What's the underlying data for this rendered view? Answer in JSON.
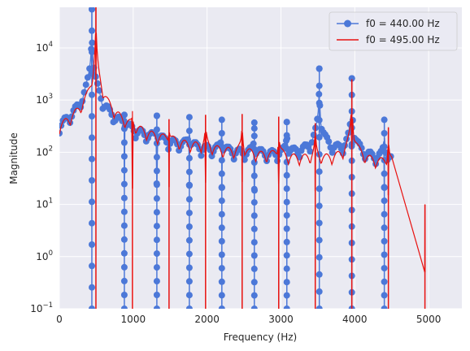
{
  "chart_data": {
    "type": "line",
    "title": "",
    "xlabel": "Frequency (Hz)",
    "ylabel": "Magnitude",
    "xlim": [
      0,
      5450
    ],
    "ylim": [
      0.1,
      60000
    ],
    "yscale": "log",
    "grid": true,
    "legend_position": "top-right",
    "x_ticks": [
      {
        "value": 0,
        "label": "0"
      },
      {
        "value": 1000,
        "label": "1000"
      },
      {
        "value": 2000,
        "label": "2000"
      },
      {
        "value": 3000,
        "label": "3000"
      },
      {
        "value": 4000,
        "label": "4000"
      },
      {
        "value": 5000,
        "label": "5000"
      }
    ],
    "y_ticks": [
      {
        "value": 0.1,
        "base": "10",
        "exp": "−1"
      },
      {
        "value": 1,
        "base": "10",
        "exp": "0"
      },
      {
        "value": 10,
        "base": "10",
        "exp": "1"
      },
      {
        "value": 100,
        "base": "10",
        "exp": "2"
      },
      {
        "value": 1000,
        "base": "10",
        "exp": "3"
      },
      {
        "value": 10000,
        "base": "10",
        "exp": "4"
      }
    ],
    "series": [
      {
        "name": "f0 = 440.00 Hz",
        "color": "#4c78d8",
        "marker": "circle",
        "base_level": 0.25,
        "floor_start": 0,
        "floor_end": 4500,
        "hump": {
          "center": 260,
          "peak": 22,
          "width": 160
        },
        "peaks": [
          {
            "x": 440,
            "y": 55000
          },
          {
            "x": 880,
            "y": 520
          },
          {
            "x": 1320,
            "y": 500
          },
          {
            "x": 1760,
            "y": 470
          },
          {
            "x": 2200,
            "y": 420
          },
          {
            "x": 2640,
            "y": 370
          },
          {
            "x": 3080,
            "y": 380
          },
          {
            "x": 3520,
            "y": 4000
          },
          {
            "x": 3960,
            "y": 2600
          },
          {
            "x": 4400,
            "y": 420
          }
        ]
      },
      {
        "name": "f0 = 495.00 Hz",
        "color": "#e8110f",
        "marker": "none",
        "base_level": 0.15,
        "floor_start": 0,
        "floor_end": 4500,
        "hump": {
          "center": 250,
          "peak": 18,
          "width": 150
        },
        "peaks": [
          {
            "x": 495,
            "y": 60000
          },
          {
            "x": 990,
            "y": 400
          },
          {
            "x": 1485,
            "y": 430
          },
          {
            "x": 1980,
            "y": 520
          },
          {
            "x": 2475,
            "y": 540
          },
          {
            "x": 2970,
            "y": 480
          },
          {
            "x": 3465,
            "y": 360
          },
          {
            "x": 3960,
            "y": 2500
          },
          {
            "x": 4455,
            "y": 300
          },
          {
            "x": 4950,
            "y": 10
          }
        ]
      }
    ]
  }
}
